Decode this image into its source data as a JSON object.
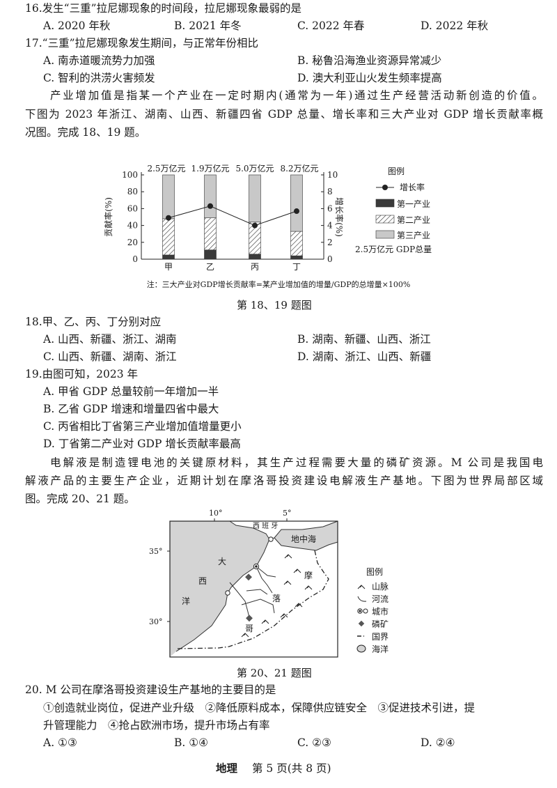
{
  "q16": {
    "stem": "16.发生“三重”拉尼娜现象的时间段，拉尼娜现象最弱的是",
    "options": [
      "A. 2020 年秋",
      "B. 2021 年冬",
      "C. 2022 年春",
      "D. 2022 年秋"
    ]
  },
  "q17": {
    "stem": "17.“三重”拉尼娜现象发生期间，与正常年份相比",
    "options": [
      "A. 南赤道暖流势力加强",
      "B. 秘鲁沿海渔业资源异常减少",
      "C. 智利的洪涝火害频发",
      "D. 澳大利亚山火发生频率提高"
    ]
  },
  "para1": [
    "产业增加值是指某一个产业在一定时期内(通常为一年)通过生产经营活动新创造的价值。",
    "下图为 2023 年浙江、湖南、山西、新疆四省 GDP 总量、增长率和三大产业对 GDP 增长贡献率概",
    "况图。完成 18、19 题。"
  ],
  "chart_data": {
    "type": "bar",
    "categories": [
      "甲",
      "乙",
      "丙",
      "丁"
    ],
    "gdp_labels": [
      "2.5万亿元",
      "1.9万亿元",
      "5.0万亿元",
      "8.2万亿元"
    ],
    "series": [
      {
        "name": "第一产业",
        "values": [
          5,
          11,
          6,
          4
        ],
        "color": "#3a3a3a"
      },
      {
        "name": "第二产业",
        "values": [
          43,
          38,
          38,
          29
        ],
        "pattern": "hatch"
      },
      {
        "name": "第三产业",
        "values": [
          52,
          51,
          56,
          67
        ],
        "color": "#c8c8c8"
      },
      {
        "name": "增长率",
        "type": "line",
        "axis": "right",
        "values": [
          4.9,
          6.3,
          4.0,
          5.7
        ]
      }
    ],
    "ylabel": "贡献率(%)",
    "ylabel_right": "增长率(%)",
    "ylim": [
      0,
      100
    ],
    "ylim_right": [
      0,
      10
    ],
    "yticks": [
      "0",
      "20",
      "40",
      "60",
      "80",
      "100"
    ],
    "yticks_right": [
      "0",
      "2",
      "4",
      "6",
      "8",
      "10"
    ],
    "legend": {
      "title": "图例",
      "items": [
        "增长率",
        "第一产业",
        "第二产业",
        "第三产业"
      ],
      "gdp_item": "2.5万亿元 GDP总量",
      "position": "right"
    },
    "note": "注：三大产业对GDP增长贡献率=某产业增加值的增量/GDP的总增量×100%"
  },
  "chart_caption": "第 18、19 题图",
  "q18": {
    "stem": "18.甲、乙、丙、丁分别对应",
    "options": [
      "A. 山西、新疆、浙江、湖南",
      "B. 湖南、新疆、山西、浙江",
      "C. 山西、新疆、湖南、浙江",
      "D. 湖南、浙江、山西、新疆"
    ]
  },
  "q19": {
    "stem": "19.由图可知，2023 年",
    "options": [
      "A. 甲省 GDP 总量较前一年增加一半",
      "B. 乙省 GDP 增速和增量四省中最大",
      "C. 丙省相比丁省第三产业增加值增量更小",
      "D. 丁省第二产业对 GDP 增长贡献率最高"
    ]
  },
  "para2": [
    "电解液是制造锂电池的关键原材料，其生产过程需要大量的磷矿资源。M 公司是我国电",
    "解液产品的主要生产企业，近期计划在摩洛哥投资建设电解液生产基地。下图为世界局部区域",
    "图。完成 20、21 题。"
  ],
  "map": {
    "lon_labels": [
      "10°",
      "5°"
    ],
    "lat_labels": [
      "35°",
      "30°"
    ],
    "labels": {
      "spain": "西 班 牙",
      "med": "地中海",
      "atl": [
        "大",
        "西",
        "洋"
      ],
      "morocco": [
        "摩",
        "落",
        "哥"
      ]
    },
    "legend": {
      "title": "图例",
      "items": [
        "山脉",
        "河流",
        "城市",
        "磷矿",
        "国界",
        "海洋"
      ]
    },
    "ocean_color": "#d4d4d4"
  },
  "map_caption": "第 20、21 题图",
  "q20": {
    "stem": "20. M 公司在摩洛哥投资建设生产基地的主要目的是",
    "body1": "①创造就业岗位，促进产业升级　②降低原料成本，保障供应链安全　③促进技术引进，提",
    "body2": "升管理能力　④抢占欧洲市场，提升市场占有率",
    "options": [
      "A. ①③",
      "B. ①④",
      "C. ②③",
      "D. ②④"
    ]
  },
  "footer": {
    "subject": "地理",
    "page": "第 5 页(共 8 页)"
  }
}
